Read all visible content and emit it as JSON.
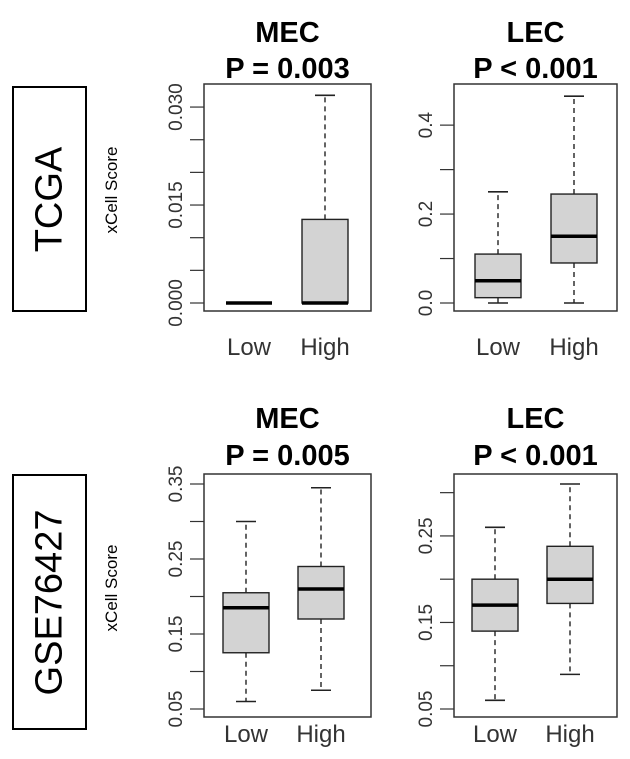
{
  "rows": [
    {
      "label": "TCGA"
    },
    {
      "label": "GSE76427"
    }
  ],
  "chart_data": [
    {
      "type": "box",
      "dataset": "TCGA",
      "title": "MEC",
      "pvalue": "P = 0.003",
      "ylabel": "xCell Score",
      "categories": [
        "Low",
        "High"
      ],
      "ylim": [
        0,
        0.032
      ],
      "yticks": [
        0.0,
        0.005,
        0.01,
        0.015,
        0.02,
        0.025,
        0.03
      ],
      "ytick_labels": [
        "0.000",
        "",
        "",
        "0.015",
        "",
        "",
        "0.030"
      ],
      "boxes": [
        {
          "min": 0.0,
          "q1": 0.0,
          "median": 0.0,
          "q3": 0.0,
          "max": 0.0
        },
        {
          "min": 0.0,
          "q1": 0.0,
          "median": 0.0,
          "q3": 0.0128,
          "max": 0.0318
        }
      ]
    },
    {
      "type": "box",
      "dataset": "TCGA",
      "title": "LEC",
      "pvalue": "P < 0.001",
      "ylabel": "",
      "categories": [
        "Low",
        "High"
      ],
      "ylim": [
        0,
        0.47
      ],
      "yticks": [
        0.0,
        0.1,
        0.2,
        0.3,
        0.4
      ],
      "ytick_labels": [
        "0.0",
        "",
        "0.2",
        "",
        "0.4"
      ],
      "boxes": [
        {
          "min": 0.0,
          "q1": 0.012,
          "median": 0.05,
          "q3": 0.11,
          "max": 0.25
        },
        {
          "min": 0.0,
          "q1": 0.09,
          "median": 0.15,
          "q3": 0.245,
          "max": 0.465
        }
      ]
    },
    {
      "type": "box",
      "dataset": "GSE76427",
      "title": "MEC",
      "pvalue": "P = 0.005",
      "ylabel": "xCell Score",
      "categories": [
        "Low",
        "High"
      ],
      "ylim": [
        0.05,
        0.35
      ],
      "yticks": [
        0.05,
        0.1,
        0.15,
        0.2,
        0.25,
        0.3,
        0.35
      ],
      "ytick_labels": [
        "0.05",
        "",
        "0.15",
        "",
        "0.25",
        "",
        "0.35"
      ],
      "boxes": [
        {
          "min": 0.06,
          "q1": 0.125,
          "median": 0.185,
          "q3": 0.205,
          "max": 0.3
        },
        {
          "min": 0.075,
          "q1": 0.17,
          "median": 0.21,
          "q3": 0.24,
          "max": 0.345
        }
      ]
    },
    {
      "type": "box",
      "dataset": "GSE76427",
      "title": "LEC",
      "pvalue": "P < 0.001",
      "ylabel": "",
      "categories": [
        "Low",
        "High"
      ],
      "ylim": [
        0.05,
        0.31
      ],
      "yticks": [
        0.05,
        0.1,
        0.15,
        0.2,
        0.25,
        0.3
      ],
      "ytick_labels": [
        "0.05",
        "",
        "0.15",
        "",
        "0.25",
        ""
      ],
      "boxes": [
        {
          "min": 0.06,
          "q1": 0.14,
          "median": 0.17,
          "q3": 0.2,
          "max": 0.26
        },
        {
          "min": 0.09,
          "q1": 0.172,
          "median": 0.2,
          "q3": 0.238,
          "max": 0.31
        }
      ]
    }
  ]
}
